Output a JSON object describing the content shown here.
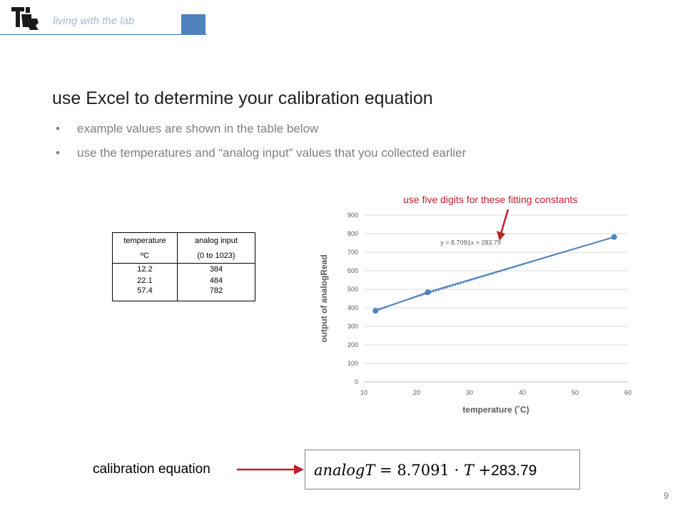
{
  "header": {
    "text": "living with the lab"
  },
  "slide": {
    "title": "use Excel to determine your calibration equation",
    "bullets": [
      "example values are shown in the table below",
      "use the temperatures and “analog input” values that you collected earlier"
    ],
    "page_number": "9"
  },
  "table": {
    "headers": [
      [
        "temperature",
        "analog input"
      ],
      [
        "ºC",
        "(0 to 1023)"
      ]
    ],
    "rows": [
      [
        "12.2",
        "384"
      ],
      [
        "22.1",
        "484"
      ],
      [
        "57.4",
        "782"
      ]
    ]
  },
  "annotation": {
    "text": "use five digits for these fitting constants",
    "color": "#c0202a"
  },
  "chart_data": {
    "type": "scatter",
    "x": [
      12.2,
      22.1,
      57.4
    ],
    "y": [
      384,
      484,
      782
    ],
    "xlabel": "temperature (˚C)",
    "ylabel": "output of analogRead",
    "xlim": [
      10,
      60
    ],
    "ylim": [
      0,
      900
    ],
    "xticks": [
      "10",
      "20",
      "30",
      "40",
      "50",
      "60"
    ],
    "yticks": [
      "0",
      "100",
      "200",
      "300",
      "400",
      "500",
      "600",
      "700",
      "800",
      "900"
    ],
    "trendline": {
      "slope": 8.7091,
      "intercept": 283.79,
      "label": "y = 8.7091x + 283.79"
    },
    "grid": true,
    "series_color": "#4f81bd"
  },
  "calibration": {
    "label": "calibration equation",
    "lhs": "analogT",
    "equals": " = 8.7091 · ",
    "var": "T",
    "plus": " +",
    "intercept": "283.79"
  }
}
